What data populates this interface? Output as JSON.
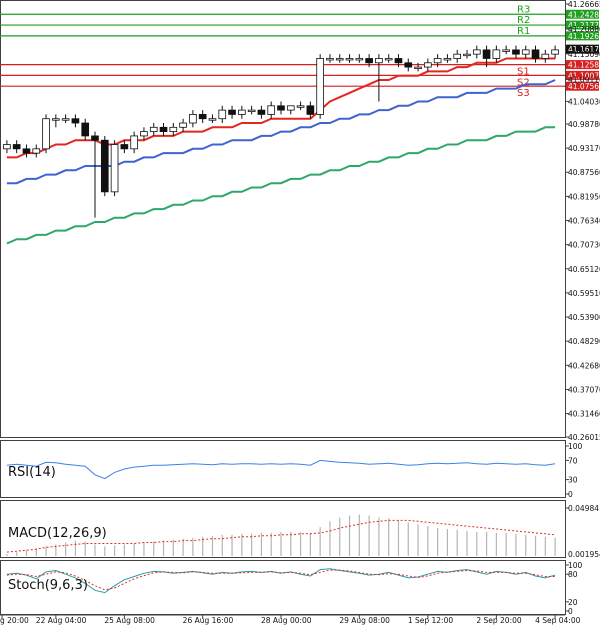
{
  "chart_data": {
    "type": "candlestick",
    "title": "",
    "price_axis_ticks": [
      "41.26665",
      "41.20880",
      "41.15090",
      "41.09110",
      "41.04030",
      "40.98780",
      "40.93170",
      "40.87560",
      "40.81950",
      "40.76340",
      "40.70730",
      "40.65120",
      "40.59510",
      "40.53900",
      "40.48290",
      "40.42680",
      "40.37070",
      "40.31460",
      "40.26015"
    ],
    "current_price": "41.16170",
    "levels": [
      {
        "name": "R3",
        "value": 41.2428,
        "label": "41.24280",
        "color": "#1f9e1f"
      },
      {
        "name": "R2",
        "value": 41.2177,
        "label": "41.21770",
        "color": "#1f9e1f"
      },
      {
        "name": "R1",
        "value": 41.1926,
        "label": "41.19260",
        "color": "#1f9e1f"
      },
      {
        "name": "S1",
        "value": 41.1258,
        "label": "41.12580",
        "color": "#d61f1f"
      },
      {
        "name": "S2",
        "value": 41.1007,
        "label": "41.10070",
        "color": "#d61f1f"
      },
      {
        "name": "S3",
        "value": 41.0756,
        "label": "41.07560",
        "color": "#d61f1f"
      }
    ],
    "candles": [
      {
        "o": 40.93,
        "h": 40.95,
        "l": 40.92,
        "c": 40.94
      },
      {
        "o": 40.94,
        "h": 40.95,
        "l": 40.92,
        "c": 40.93
      },
      {
        "o": 40.93,
        "h": 40.94,
        "l": 40.91,
        "c": 40.92
      },
      {
        "o": 40.92,
        "h": 40.94,
        "l": 40.91,
        "c": 40.93
      },
      {
        "o": 40.93,
        "h": 41.01,
        "l": 40.92,
        "c": 41.0
      },
      {
        "o": 41.0,
        "h": 41.01,
        "l": 40.98,
        "c": 41.0
      },
      {
        "o": 41.0,
        "h": 41.01,
        "l": 40.99,
        "c": 41.0
      },
      {
        "o": 41.0,
        "h": 41.01,
        "l": 40.98,
        "c": 40.99
      },
      {
        "o": 40.99,
        "h": 41.0,
        "l": 40.95,
        "c": 40.96
      },
      {
        "o": 40.96,
        "h": 40.97,
        "l": 40.77,
        "c": 40.95
      },
      {
        "o": 40.95,
        "h": 40.96,
        "l": 40.82,
        "c": 40.83
      },
      {
        "o": 40.83,
        "h": 40.95,
        "l": 40.82,
        "c": 40.94
      },
      {
        "o": 40.94,
        "h": 40.95,
        "l": 40.92,
        "c": 40.93
      },
      {
        "o": 40.93,
        "h": 40.97,
        "l": 40.92,
        "c": 40.96
      },
      {
        "o": 40.96,
        "h": 40.98,
        "l": 40.95,
        "c": 40.97
      },
      {
        "o": 40.97,
        "h": 40.99,
        "l": 40.96,
        "c": 40.98
      },
      {
        "o": 40.98,
        "h": 40.99,
        "l": 40.96,
        "c": 40.97
      },
      {
        "o": 40.97,
        "h": 40.99,
        "l": 40.96,
        "c": 40.98
      },
      {
        "o": 40.98,
        "h": 41.0,
        "l": 40.97,
        "c": 40.99
      },
      {
        "o": 40.99,
        "h": 41.02,
        "l": 40.98,
        "c": 41.01
      },
      {
        "o": 41.01,
        "h": 41.02,
        "l": 40.99,
        "c": 41.0
      },
      {
        "o": 41.0,
        "h": 41.01,
        "l": 40.99,
        "c": 41.0
      },
      {
        "o": 41.0,
        "h": 41.03,
        "l": 40.99,
        "c": 41.02
      },
      {
        "o": 41.02,
        "h": 41.03,
        "l": 41.0,
        "c": 41.01
      },
      {
        "o": 41.01,
        "h": 41.03,
        "l": 41.0,
        "c": 41.02
      },
      {
        "o": 41.02,
        "h": 41.03,
        "l": 41.01,
        "c": 41.02
      },
      {
        "o": 41.02,
        "h": 41.03,
        "l": 41.0,
        "c": 41.01
      },
      {
        "o": 41.01,
        "h": 41.04,
        "l": 41.0,
        "c": 41.03
      },
      {
        "o": 41.03,
        "h": 41.04,
        "l": 41.01,
        "c": 41.02
      },
      {
        "o": 41.02,
        "h": 41.03,
        "l": 41.01,
        "c": 41.03
      },
      {
        "o": 41.03,
        "h": 41.04,
        "l": 41.02,
        "c": 41.03
      },
      {
        "o": 41.03,
        "h": 41.04,
        "l": 41.0,
        "c": 41.01
      },
      {
        "o": 41.01,
        "h": 41.15,
        "l": 41.0,
        "c": 41.14
      },
      {
        "o": 41.14,
        "h": 41.15,
        "l": 41.13,
        "c": 41.14
      },
      {
        "o": 41.14,
        "h": 41.15,
        "l": 41.13,
        "c": 41.14
      },
      {
        "o": 41.14,
        "h": 41.15,
        "l": 41.13,
        "c": 41.14
      },
      {
        "o": 41.14,
        "h": 41.15,
        "l": 41.13,
        "c": 41.14
      },
      {
        "o": 41.14,
        "h": 41.15,
        "l": 41.12,
        "c": 41.13
      },
      {
        "o": 41.13,
        "h": 41.15,
        "l": 41.04,
        "c": 41.14
      },
      {
        "o": 41.14,
        "h": 41.15,
        "l": 41.13,
        "c": 41.14
      },
      {
        "o": 41.14,
        "h": 41.15,
        "l": 41.12,
        "c": 41.13
      },
      {
        "o": 41.13,
        "h": 41.14,
        "l": 41.11,
        "c": 41.12
      },
      {
        "o": 41.12,
        "h": 41.13,
        "l": 41.11,
        "c": 41.12
      },
      {
        "o": 41.12,
        "h": 41.14,
        "l": 41.11,
        "c": 41.13
      },
      {
        "o": 41.13,
        "h": 41.15,
        "l": 41.12,
        "c": 41.14
      },
      {
        "o": 41.14,
        "h": 41.15,
        "l": 41.13,
        "c": 41.14
      },
      {
        "o": 41.14,
        "h": 41.16,
        "l": 41.13,
        "c": 41.15
      },
      {
        "o": 41.15,
        "h": 41.16,
        "l": 41.14,
        "c": 41.15
      },
      {
        "o": 41.15,
        "h": 41.17,
        "l": 41.14,
        "c": 41.16
      },
      {
        "o": 41.16,
        "h": 41.17,
        "l": 41.12,
        "c": 41.14
      },
      {
        "o": 41.14,
        "h": 41.17,
        "l": 41.13,
        "c": 41.16
      },
      {
        "o": 41.16,
        "h": 41.17,
        "l": 41.15,
        "c": 41.16
      },
      {
        "o": 41.16,
        "h": 41.17,
        "l": 41.14,
        "c": 41.15
      },
      {
        "o": 41.15,
        "h": 41.17,
        "l": 41.14,
        "c": 41.16
      },
      {
        "o": 41.16,
        "h": 41.17,
        "l": 41.13,
        "c": 41.14
      },
      {
        "o": 41.14,
        "h": 41.16,
        "l": 41.13,
        "c": 41.15
      },
      {
        "o": 41.15,
        "h": 41.17,
        "l": 41.14,
        "c": 41.16
      }
    ],
    "ema_fast": [
      40.91,
      40.91,
      40.92,
      40.92,
      40.93,
      40.94,
      40.94,
      40.95,
      40.95,
      40.95,
      40.94,
      40.94,
      40.95,
      40.95,
      40.95,
      40.96,
      40.96,
      40.96,
      40.97,
      40.97,
      40.97,
      40.98,
      40.98,
      40.98,
      40.99,
      40.99,
      40.99,
      41.0,
      41.0,
      41.0,
      41.0,
      41.0,
      41.02,
      41.04,
      41.05,
      41.06,
      41.07,
      41.08,
      41.09,
      41.09,
      41.1,
      41.1,
      41.1,
      41.11,
      41.11,
      41.11,
      41.12,
      41.12,
      41.13,
      41.13,
      41.13,
      41.14,
      41.14,
      41.14,
      41.14,
      41.14,
      41.14
    ],
    "ema_mid": [
      40.85,
      40.85,
      40.86,
      40.86,
      40.87,
      40.87,
      40.88,
      40.88,
      40.89,
      40.89,
      40.89,
      40.89,
      40.9,
      40.9,
      40.91,
      40.91,
      40.92,
      40.92,
      40.92,
      40.93,
      40.93,
      40.94,
      40.94,
      40.95,
      40.95,
      40.95,
      40.96,
      40.96,
      40.97,
      40.97,
      40.98,
      40.98,
      40.99,
      40.99,
      41.0,
      41.0,
      41.01,
      41.01,
      41.02,
      41.02,
      41.03,
      41.03,
      41.04,
      41.04,
      41.05,
      41.05,
      41.05,
      41.06,
      41.06,
      41.06,
      41.07,
      41.07,
      41.07,
      41.08,
      41.08,
      41.08,
      41.09
    ],
    "ema_slow": [
      40.71,
      40.72,
      40.72,
      40.73,
      40.73,
      40.74,
      40.74,
      40.75,
      40.75,
      40.76,
      40.76,
      40.77,
      40.77,
      40.78,
      40.78,
      40.79,
      40.79,
      40.8,
      40.8,
      40.81,
      40.81,
      40.82,
      40.82,
      40.83,
      40.83,
      40.84,
      40.84,
      40.85,
      40.85,
      40.86,
      40.86,
      40.87,
      40.87,
      40.88,
      40.88,
      40.89,
      40.89,
      40.9,
      40.9,
      40.91,
      40.91,
      40.92,
      40.92,
      40.93,
      40.93,
      40.94,
      40.94,
      40.95,
      40.95,
      40.95,
      40.96,
      40.96,
      40.97,
      40.97,
      40.97,
      40.98,
      40.98
    ],
    "x_ticks": [
      {
        "label": "g 20:00",
        "index": 0
      },
      {
        "label": "22 Aug 04:00",
        "index": 5
      },
      {
        "label": "25 Aug 08:00",
        "index": 12
      },
      {
        "label": "26 Aug 16:00",
        "index": 20
      },
      {
        "label": "28 Aug 00:00",
        "index": 28
      },
      {
        "label": "29 Aug 08:00",
        "index": 36
      },
      {
        "label": "1 Sep 12:00",
        "index": 43
      },
      {
        "label": "2 Sep 20:00",
        "index": 50
      },
      {
        "label": "4 Sep 04:00",
        "index": 56
      }
    ],
    "rsi": {
      "name": "RSI(14)",
      "ticks": [
        "100",
        "70",
        "30",
        "0"
      ],
      "levels": [
        100,
        70,
        30,
        0
      ],
      "values": [
        60,
        62,
        60,
        58,
        66,
        65,
        62,
        60,
        58,
        40,
        32,
        45,
        52,
        56,
        58,
        60,
        60,
        61,
        62,
        63,
        62,
        61,
        63,
        62,
        63,
        63,
        62,
        63,
        62,
        63,
        62,
        60,
        70,
        68,
        66,
        65,
        64,
        62,
        63,
        64,
        62,
        60,
        61,
        63,
        64,
        63,
        64,
        65,
        63,
        62,
        64,
        63,
        62,
        63,
        61,
        60,
        63
      ]
    },
    "macd": {
      "name": "MACD(12,26,9)",
      "ticks": [
        "0.04984",
        "0.001954"
      ],
      "histogram": [
        0.002,
        0.004,
        0.006,
        0.008,
        0.01,
        0.012,
        0.014,
        0.016,
        0.015,
        0.012,
        0.01,
        0.011,
        0.012,
        0.013,
        0.014,
        0.015,
        0.016,
        0.017,
        0.018,
        0.019,
        0.02,
        0.021,
        0.022,
        0.022,
        0.023,
        0.023,
        0.024,
        0.024,
        0.025,
        0.025,
        0.025,
        0.024,
        0.03,
        0.036,
        0.04,
        0.042,
        0.043,
        0.042,
        0.04,
        0.039,
        0.037,
        0.035,
        0.033,
        0.031,
        0.029,
        0.028,
        0.027,
        0.026,
        0.025,
        0.025,
        0.024,
        0.024,
        0.023,
        0.022,
        0.021,
        0.02,
        0.019
      ],
      "signal": [
        0.004,
        0.005,
        0.006,
        0.007,
        0.009,
        0.01,
        0.011,
        0.012,
        0.013,
        0.013,
        0.013,
        0.013,
        0.013,
        0.013,
        0.014,
        0.014,
        0.015,
        0.015,
        0.016,
        0.016,
        0.017,
        0.018,
        0.018,
        0.019,
        0.02,
        0.02,
        0.021,
        0.021,
        0.022,
        0.022,
        0.023,
        0.023,
        0.024,
        0.026,
        0.029,
        0.031,
        0.033,
        0.035,
        0.036,
        0.037,
        0.037,
        0.037,
        0.036,
        0.035,
        0.034,
        0.033,
        0.032,
        0.031,
        0.03,
        0.029,
        0.028,
        0.027,
        0.026,
        0.025,
        0.024,
        0.023,
        0.022
      ]
    },
    "stoch": {
      "name": "Stoch(9,6,3)",
      "ticks": [
        "100",
        "80",
        "20",
        "0"
      ],
      "levels": [
        100,
        80,
        20,
        0
      ],
      "k": [
        80,
        82,
        78,
        70,
        85,
        88,
        80,
        72,
        60,
        45,
        40,
        55,
        68,
        75,
        82,
        86,
        85,
        82,
        84,
        86,
        83,
        80,
        84,
        82,
        85,
        86,
        84,
        86,
        82,
        85,
        80,
        76,
        90,
        92,
        88,
        85,
        82,
        78,
        80,
        84,
        78,
        72,
        74,
        80,
        86,
        84,
        88,
        90,
        85,
        80,
        86,
        84,
        80,
        84,
        76,
        72,
        78
      ],
      "d": [
        78,
        80,
        79,
        75,
        80,
        85,
        83,
        76,
        66,
        55,
        46,
        50,
        60,
        70,
        77,
        83,
        85,
        84,
        83,
        85,
        84,
        82,
        82,
        82,
        83,
        84,
        84,
        85,
        83,
        84,
        82,
        79,
        84,
        89,
        89,
        87,
        84,
        80,
        79,
        81,
        80,
        76,
        73,
        76,
        82,
        85,
        86,
        88,
        87,
        84,
        84,
        84,
        82,
        82,
        79,
        75,
        75
      ]
    }
  }
}
